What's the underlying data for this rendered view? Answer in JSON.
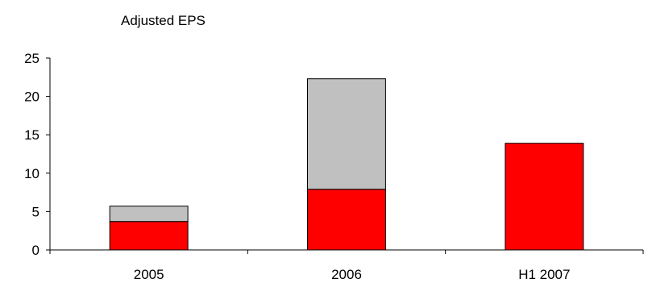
{
  "chart_data": {
    "type": "bar",
    "stacked": true,
    "title": "Adjusted EPS",
    "xlabel": "",
    "ylabel": "",
    "categories": [
      "2005",
      "2006",
      "H1 2007"
    ],
    "series": [
      {
        "values": [
          3.7,
          7.9,
          13.9
        ],
        "color": "#ff0000"
      },
      {
        "values": [
          2.0,
          14.4,
          0
        ],
        "color": "#c0c0c0"
      }
    ],
    "ylim": [
      0,
      25
    ],
    "yticks": [
      0,
      5,
      10,
      15,
      20,
      25
    ],
    "grid": false,
    "legend": "none"
  }
}
